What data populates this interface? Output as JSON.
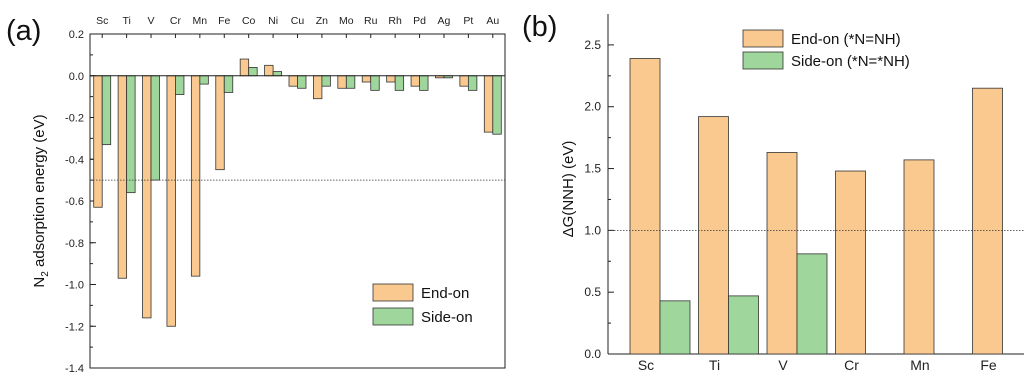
{
  "chart_data": [
    {
      "panel_label": "(a)",
      "type": "bar",
      "title": "",
      "xlabel": "",
      "ylabel_main": "N",
      "ylabel_sub": "2",
      "ylabel_rest": " adsorption energy (eV)",
      "ylim": [
        -1.4,
        0.2
      ],
      "yticks": [
        "0.2",
        "0.0",
        "-0.2",
        "-0.4",
        "-0.6",
        "-0.8",
        "-1.0",
        "-1.2",
        "-1.4"
      ],
      "ytick_values": [
        0.2,
        0.0,
        -0.2,
        -0.4,
        -0.6,
        -0.8,
        -1.0,
        -1.2,
        -1.4
      ],
      "x_tick_position": "top",
      "categories": [
        "Sc",
        "Ti",
        "V",
        "Cr",
        "Mn",
        "Fe",
        "Co",
        "Ni",
        "Cu",
        "Zn",
        "Mo",
        "Ru",
        "Rh",
        "Pd",
        "Ag",
        "Pt",
        "Au"
      ],
      "series": [
        {
          "name": "End-on",
          "color": "#f9c98f",
          "values": [
            -0.63,
            -0.97,
            -1.16,
            -1.2,
            -0.96,
            -0.45,
            0.08,
            0.05,
            -0.05,
            -0.11,
            -0.06,
            -0.03,
            -0.03,
            -0.05,
            -0.01,
            -0.05,
            -0.27
          ]
        },
        {
          "name": "Side-on",
          "color": "#9fd69b",
          "values": [
            -0.33,
            -0.56,
            -0.5,
            -0.09,
            -0.04,
            -0.08,
            0.04,
            0.02,
            -0.06,
            -0.05,
            -0.06,
            -0.07,
            -0.07,
            -0.07,
            -0.01,
            -0.07,
            -0.28
          ]
        }
      ],
      "reference_line": -0.5,
      "legend_placement": "bottom-right",
      "grid": false
    },
    {
      "panel_label": "(b)",
      "type": "bar",
      "title": "",
      "xlabel": "",
      "ylabel": "ΔG(NNH) (eV)",
      "ylim": [
        0.0,
        2.75
      ],
      "yticks": [
        "0.0",
        "0.5",
        "1.0",
        "1.5",
        "2.0",
        "2.5"
      ],
      "ytick_values": [
        0.0,
        0.5,
        1.0,
        1.5,
        2.0,
        2.5
      ],
      "x_tick_position": "bottom",
      "categories": [
        "Sc",
        "Ti",
        "V",
        "Cr",
        "Mn",
        "Fe"
      ],
      "series": [
        {
          "name": "End-on (*N=NH)",
          "color": "#f9c98f",
          "values": [
            2.39,
            1.92,
            1.63,
            1.48,
            1.57,
            2.15
          ]
        },
        {
          "name": "Side-on (*N=*NH)",
          "color": "#9fd69b",
          "values": [
            0.43,
            0.47,
            0.81,
            null,
            null,
            null
          ]
        }
      ],
      "reference_line": 1.0,
      "legend_placement": "top-right",
      "grid": false
    }
  ]
}
